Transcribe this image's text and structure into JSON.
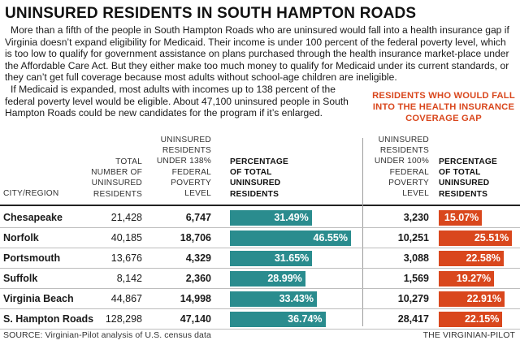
{
  "title": "UNINSURED RESIDENTS IN SOUTH HAMPTON ROADS",
  "intro_p1": "More than a fifth of the people in South Hampton Roads who are uninsured would fall into a health insurance gap if Virginia doesn’t expand eligibility for Medicaid. Their income is under 100 percent of the federal poverty level, which is too low to qualify for government assistance on plans purchased through the health insurance market-place under the Affordable Care Act. But they either make too much money to qualify for Medicaid under its current standards, or they can’t get full coverage because most adults without school-age children are ineligible.",
  "intro_p2": "If Medicaid is expanded, most adults with incomes up to 138 percent of the federal poverty level would be eligible. About 47,100 uninsured people in South Hampton Roads could be new candidates for the program if it’s enlarged.",
  "gap_heading": "RESIDENTS WHO WOULD FALL INTO THE HEALTH INSURANCE COVERAGE GAP",
  "headers": {
    "city": "CITY/REGION",
    "total": "TOTAL\nNUMBER OF\nUNINSURED\nRESIDENTS",
    "u138": "UNINSURED\nRESIDENTS\nUNDER 138%\nFEDERAL\nPOVERTY\nLEVEL",
    "pct138": "PERCENTAGE\nOF TOTAL\nUNINSURED\nRESIDENTS",
    "u100": "UNINSURED\nRESIDENTS\nUNDER 100%\nFEDERAL\nPOVERTY\nLEVEL",
    "pct100": "PERCENTAGE\nOF TOTAL\nUNINSURED\nRESIDENTS"
  },
  "colors": {
    "teal": "#2a8c8e",
    "orange": "#d9471d"
  },
  "source": "SOURCE: Virginian-Pilot analysis of U.S. census data",
  "credit": "THE VIRGINIAN-PILOT",
  "chart_data": {
    "type": "table",
    "title": "UNINSURED RESIDENTS IN SOUTH HAMPTON ROADS",
    "columns": [
      "CITY/REGION",
      "TOTAL NUMBER OF UNINSURED RESIDENTS",
      "UNINSURED RESIDENTS UNDER 138% FEDERAL POVERTY LEVEL",
      "PERCENTAGE OF TOTAL UNINSURED RESIDENTS",
      "UNINSURED RESIDENTS UNDER 100% FEDERAL POVERTY LEVEL",
      "PERCENTAGE OF TOTAL UNINSURED RESIDENTS"
    ],
    "rows": [
      {
        "city": "Chesapeake",
        "total": "21,428",
        "u138": "6,747",
        "pct138": 31.49,
        "pct138_label": "31.49%",
        "u100": "3,230",
        "pct100": 15.07,
        "pct100_label": "15.07%"
      },
      {
        "city": "Norfolk",
        "total": "40,185",
        "u138": "18,706",
        "pct138": 46.55,
        "pct138_label": "46.55%",
        "u100": "10,251",
        "pct100": 25.51,
        "pct100_label": "25.51%"
      },
      {
        "city": "Portsmouth",
        "total": "13,676",
        "u138": "4,329",
        "pct138": 31.65,
        "pct138_label": "31.65%",
        "u100": "3,088",
        "pct100": 22.58,
        "pct100_label": "22.58%"
      },
      {
        "city": "Suffolk",
        "total": "8,142",
        "u138": "2,360",
        "pct138": 28.99,
        "pct138_label": "28.99%",
        "u100": "1,569",
        "pct100": 19.27,
        "pct100_label": "19.27%"
      },
      {
        "city": "Virginia Beach",
        "total": "44,867",
        "u138": "14,998",
        "pct138": 33.43,
        "pct138_label": "33.43%",
        "u100": "10,279",
        "pct100": 22.91,
        "pct100_label": "22.91%"
      },
      {
        "city": "S. Hampton Roads",
        "total": "128,298",
        "u138": "47,140",
        "pct138": 36.74,
        "pct138_label": "36.74%",
        "u100": "28,417",
        "pct100": 22.15,
        "pct100_label": "22.15%"
      }
    ]
  }
}
